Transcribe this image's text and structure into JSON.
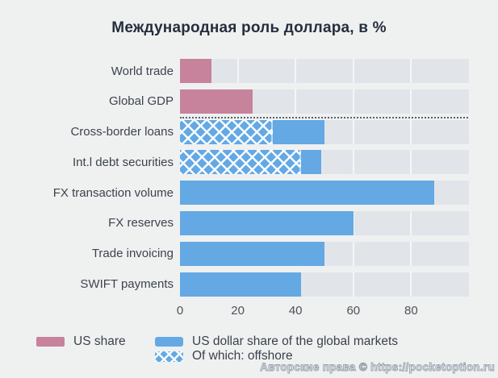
{
  "title": "Международная роль доллара, в %",
  "chart_data": {
    "type": "bar",
    "orientation": "horizontal",
    "title": "Международная роль доллара, в %",
    "xlabel": "",
    "ylabel": "",
    "xlim": [
      0,
      100
    ],
    "ticks": [
      0,
      20,
      40,
      60,
      80
    ],
    "grid": true,
    "dashed_separator_after_row": 1,
    "bars": [
      {
        "label": "World trade",
        "series": "us_share",
        "value": 11
      },
      {
        "label": "Global GDP",
        "series": "us_share",
        "value": 25
      },
      {
        "label": "Cross-border loans",
        "series": "usd_global",
        "value": 50,
        "offshore": 32
      },
      {
        "label": "Int.l debt securities",
        "series": "usd_global",
        "value": 49,
        "offshore": 42
      },
      {
        "label": "FX transaction volume",
        "series": "usd_global",
        "value": 88
      },
      {
        "label": "FX reserves",
        "series": "usd_global",
        "value": 60
      },
      {
        "label": "Trade invoicing",
        "series": "usd_global",
        "value": 50
      },
      {
        "label": "SWIFT payments",
        "series": "usd_global",
        "value": 42
      }
    ],
    "legend": [
      {
        "key": "us_share",
        "label": "US share",
        "color": "#c7829c",
        "pattern": "solid"
      },
      {
        "key": "usd_global",
        "label": "US dollar share of the global markets",
        "color": "#64a9e4",
        "pattern": "solid"
      },
      {
        "key": "offshore",
        "label": "Of which: offshore",
        "color": "#64a9e4",
        "pattern": "crosshatch"
      }
    ],
    "legend_position": "bottom"
  },
  "legend": {
    "us_share": "US share",
    "usd_global": "US dollar share of the global markets",
    "offshore": "Of which: offshore"
  },
  "watermark": "Авторские права © https://pocketoption.ru",
  "colors": {
    "page_background": "#eff1f1",
    "plot_track": "#e1e5ea",
    "us_share_pink": "#c7829c",
    "usd_blue": "#64a9e4",
    "title_text": "#252e3d",
    "label_text": "#3d434d",
    "dashed_line": "#596068"
  }
}
